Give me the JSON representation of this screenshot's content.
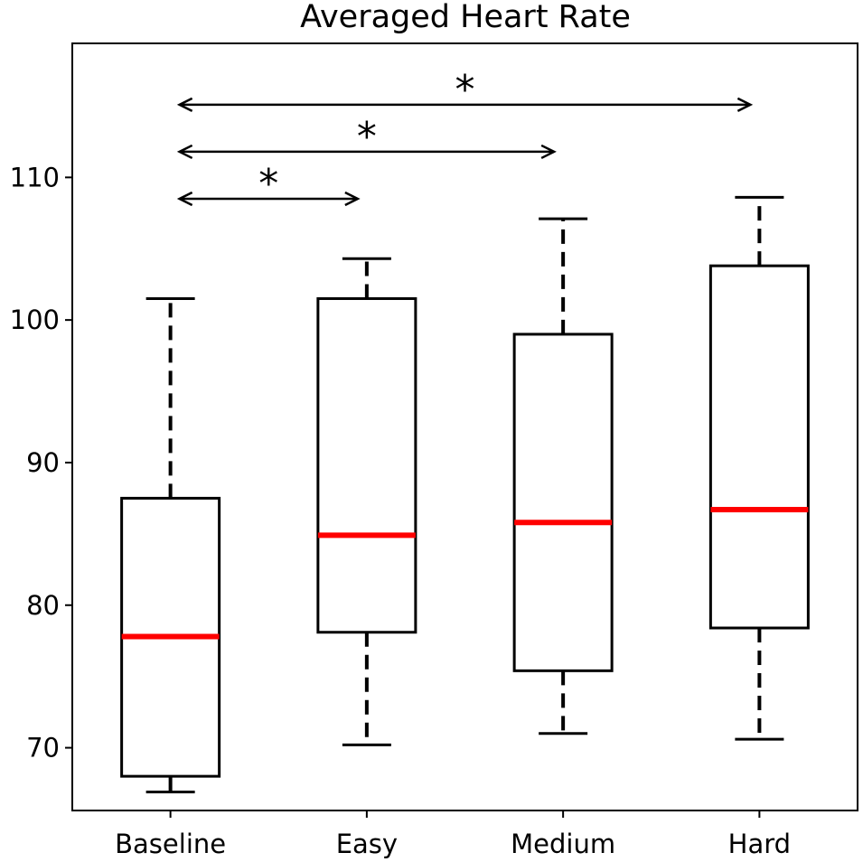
{
  "chart_data": {
    "type": "boxplot",
    "title": "Averaged Heart Rate",
    "xlabel": "",
    "ylabel": "",
    "ylim": [
      65.6,
      119.4
    ],
    "yticks": [
      70,
      80,
      90,
      100,
      110
    ],
    "ytick_labels": [
      "70",
      "80",
      "90",
      "100",
      "110"
    ],
    "categories": [
      "Baseline",
      "Easy",
      "Medium",
      "Hard"
    ],
    "boxes": [
      {
        "name": "Baseline",
        "whisker_low": 66.9,
        "q1": 68.0,
        "median": 77.8,
        "q3": 87.5,
        "whisker_high": 101.5
      },
      {
        "name": "Easy",
        "whisker_low": 70.2,
        "q1": 78.1,
        "median": 84.9,
        "q3": 101.5,
        "whisker_high": 104.3
      },
      {
        "name": "Medium",
        "whisker_low": 71.0,
        "q1": 75.4,
        "median": 85.8,
        "q3": 99.0,
        "whisker_high": 107.1
      },
      {
        "name": "Hard",
        "whisker_low": 70.6,
        "q1": 78.4,
        "median": 86.7,
        "q3": 103.8,
        "whisker_high": 108.6
      }
    ],
    "significance": [
      {
        "from": "Baseline",
        "to": "Easy",
        "y": 108.5,
        "label": "*"
      },
      {
        "from": "Baseline",
        "to": "Medium",
        "y": 111.8,
        "label": "*"
      },
      {
        "from": "Baseline",
        "to": "Hard",
        "y": 115.1,
        "label": "*"
      }
    ],
    "median_color": "#ff0000",
    "grid": false
  }
}
